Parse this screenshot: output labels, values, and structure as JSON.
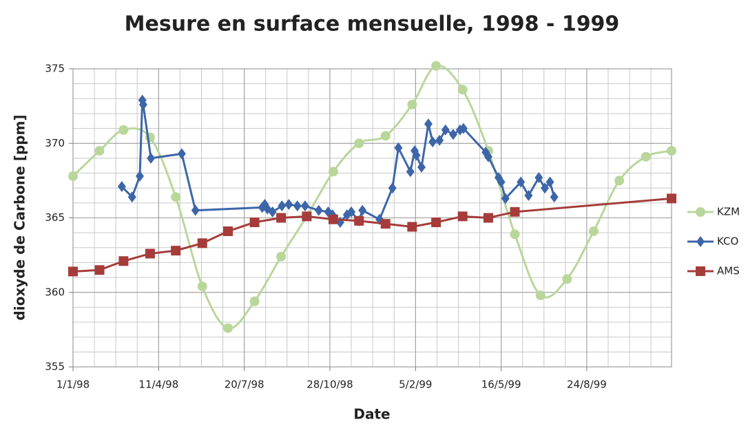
{
  "chart_data": {
    "type": "line",
    "title": "Mesure en surface mensuelle, 1998 - 1999",
    "x_label": "Date",
    "y_label": "dioxyde de Carbone [ppm]",
    "xlim": [
      "1998-01-01",
      "1999-12-01"
    ],
    "xticks": [
      {
        "value": "1998-01-01",
        "label": "1/1/98"
      },
      {
        "value": "1998-04-11",
        "label": "11/4/98"
      },
      {
        "value": "1998-07-20",
        "label": "20/7/98"
      },
      {
        "value": "1998-10-28",
        "label": "28/10/98"
      },
      {
        "value": "1999-02-05",
        "label": "5/2/99"
      },
      {
        "value": "1999-05-16",
        "label": "16/5/99"
      },
      {
        "value": "1999-08-24",
        "label": "24/8/99"
      }
    ],
    "ylim": [
      355,
      375
    ],
    "yticks": [
      355,
      360,
      365,
      370,
      375
    ],
    "grid": true,
    "legend": "right",
    "series": [
      {
        "name": "KZM",
        "color": "#b9d69b",
        "marker": "circle",
        "smooth": true,
        "x": [
          "1998-01-01",
          "1998-02-01",
          "1998-03-01",
          "1998-04-01",
          "1998-05-01",
          "1998-06-01",
          "1998-07-01",
          "1998-08-01",
          "1998-09-01",
          "1998-10-01",
          "1998-11-01",
          "1998-12-01",
          "1999-01-01",
          "1999-02-01",
          "1999-03-01",
          "1999-04-01",
          "1999-05-01",
          "1999-06-01",
          "1999-07-01",
          "1999-08-01",
          "1999-09-01",
          "1999-10-01",
          "1999-11-01",
          "1999-12-01"
        ],
        "values": [
          367.8,
          369.5,
          370.9,
          370.4,
          366.4,
          360.4,
          357.6,
          359.4,
          362.4,
          365.1,
          368.1,
          370.0,
          370.5,
          372.6,
          375.2,
          373.6,
          369.5,
          363.9,
          359.8,
          360.9,
          364.1,
          367.5,
          369.1,
          369.5
        ]
      },
      {
        "name": "KCO",
        "color": "#3d66a9",
        "marker": "diamond",
        "smooth": false,
        "x": [
          "1998-02-27",
          "1998-03-11",
          "1998-03-20",
          "1998-03-23",
          "1998-03-24",
          "1998-04-02",
          "1998-05-08",
          "1998-05-24",
          "1998-08-10",
          "1998-08-13",
          "1998-08-16",
          "1998-08-22",
          "1998-09-02",
          "1998-09-10",
          "1998-09-20",
          "1998-09-29",
          "1998-10-15",
          "1998-10-26",
          "1998-10-31",
          "1998-11-09",
          "1998-11-17",
          "1998-11-22",
          "1998-12-01",
          "1998-12-05",
          "1998-12-25",
          "1999-01-09",
          "1999-01-16",
          "1999-01-30",
          "1999-02-04",
          "1999-02-06",
          "1999-02-12",
          "1999-02-20",
          "1999-02-25",
          "1999-03-05",
          "1999-03-12",
          "1999-03-21",
          "1999-03-29",
          "1999-04-02",
          "1999-04-28",
          "1999-05-01",
          "1999-05-13",
          "1999-05-16",
          "1999-05-21",
          "1999-06-08",
          "1999-06-17",
          "1999-06-29",
          "1999-07-06",
          "1999-07-12",
          "1999-07-17"
        ],
        "values": [
          367.1,
          366.4,
          367.8,
          372.9,
          372.6,
          369.0,
          369.3,
          365.5,
          365.7,
          365.9,
          365.6,
          365.4,
          365.8,
          365.9,
          365.8,
          365.8,
          365.5,
          365.4,
          365.2,
          364.7,
          365.2,
          365.4,
          364.8,
          365.5,
          364.9,
          367.0,
          369.7,
          368.1,
          369.5,
          369.2,
          368.4,
          371.3,
          370.1,
          370.2,
          370.9,
          370.6,
          370.9,
          371.0,
          369.4,
          369.1,
          367.7,
          367.4,
          366.3,
          367.4,
          366.5,
          367.7,
          367.0,
          367.4,
          366.4
        ]
      },
      {
        "name": "AMS",
        "color": "#a53c3a",
        "marker": "square",
        "smooth": false,
        "x": [
          "1998-01-01",
          "1998-02-01",
          "1998-03-01",
          "1998-04-01",
          "1998-05-01",
          "1998-06-01",
          "1998-07-01",
          "1998-08-01",
          "1998-09-01",
          "1998-10-01",
          "1998-11-01",
          "1998-12-01",
          "1999-01-01",
          "1999-02-01",
          "1999-03-01",
          "1999-04-01",
          "1999-05-01",
          "1999-06-01",
          "1999-12-01"
        ],
        "values": [
          361.4,
          361.5,
          362.1,
          362.6,
          362.8,
          363.3,
          364.1,
          364.7,
          365.0,
          365.1,
          364.9,
          364.8,
          364.6,
          364.4,
          364.7,
          365.1,
          365.0,
          365.4,
          366.3
        ]
      }
    ]
  }
}
